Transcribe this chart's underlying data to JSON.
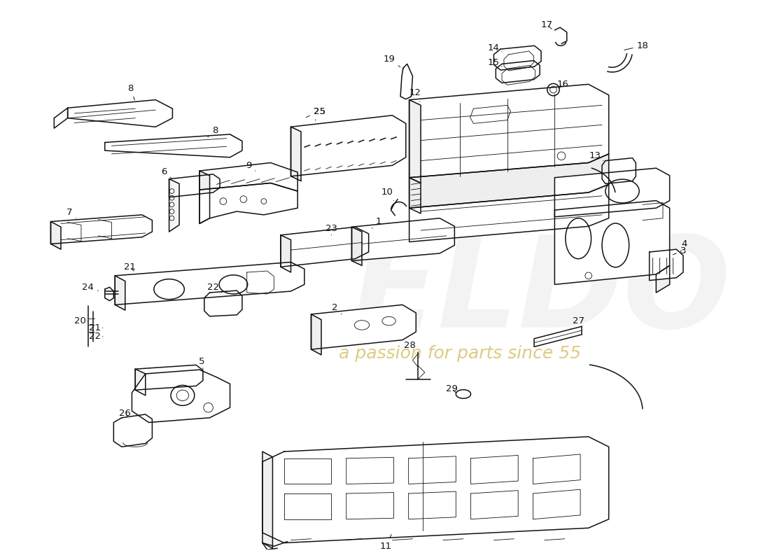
{
  "background_color": "#ffffff",
  "line_color": "#111111",
  "label_color": "#111111",
  "lw_main": 1.1,
  "lw_thin": 0.6,
  "watermark_eldo_color": "#d0d0d0",
  "watermark_text_color": "#c8b040",
  "figsize": [
    11.0,
    8.0
  ],
  "dpi": 100
}
